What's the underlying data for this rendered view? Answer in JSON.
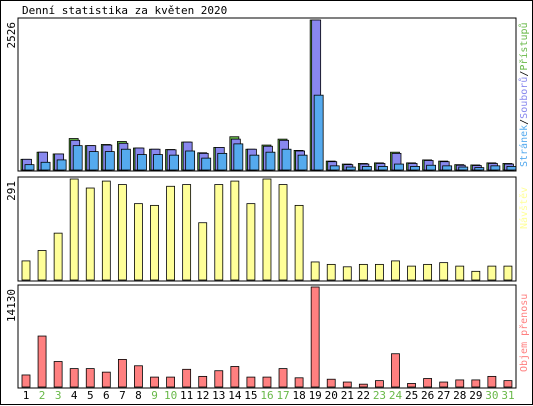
{
  "title": "Denní statistika za květen 2020",
  "colors": {
    "hits": "#68b848",
    "files": "#8888ee",
    "pages": "#55aaee",
    "visits": "#ffff99",
    "kbytes": "#ff8080",
    "weekend_day_label": "#68b848",
    "day_label": "#000000"
  },
  "chart_data": [
    {
      "type": "bar",
      "name": "hits-files-pages",
      "categories": [
        "1",
        "2",
        "3",
        "4",
        "5",
        "6",
        "7",
        "8",
        "9",
        "10",
        "11",
        "12",
        "13",
        "14",
        "15",
        "16",
        "17",
        "18",
        "19",
        "20",
        "21",
        "22",
        "23",
        "24",
        "25",
        "26",
        "27",
        "28",
        "29",
        "30",
        "31"
      ],
      "ymax_label": "2526",
      "ylim": [
        0,
        2526
      ],
      "legend": {
        "pages": "Stránek",
        "files": "Souborů",
        "hits": "Přístupů",
        "separator": "/"
      },
      "series": [
        {
          "name": "Přístupů",
          "values": [
            180,
            300,
            270,
            530,
            410,
            430,
            480,
            370,
            350,
            345,
            470,
            290,
            380,
            560,
            350,
            420,
            520,
            330,
            2526,
            150,
            100,
            110,
            120,
            300,
            120,
            170,
            150,
            90,
            85,
            120,
            110
          ]
        },
        {
          "name": "Souborů",
          "values": [
            180,
            300,
            270,
            500,
            410,
            420,
            450,
            370,
            350,
            340,
            470,
            280,
            380,
            520,
            350,
            400,
            500,
            320,
            2526,
            140,
            90,
            100,
            110,
            280,
            110,
            160,
            140,
            80,
            75,
            110,
            100
          ]
        },
        {
          "name": "Stránek",
          "values": [
            90,
            130,
            170,
            410,
            310,
            310,
            350,
            260,
            260,
            250,
            320,
            200,
            280,
            440,
            250,
            300,
            350,
            250,
            1260,
            70,
            50,
            60,
            60,
            100,
            60,
            80,
            70,
            50,
            40,
            70,
            60
          ]
        }
      ]
    },
    {
      "type": "bar",
      "name": "visits",
      "categories": [
        "1",
        "2",
        "3",
        "4",
        "5",
        "6",
        "7",
        "8",
        "9",
        "10",
        "11",
        "12",
        "13",
        "14",
        "15",
        "16",
        "17",
        "18",
        "19",
        "20",
        "21",
        "22",
        "23",
        "24",
        "25",
        "26",
        "27",
        "28",
        "29",
        "30",
        "31"
      ],
      "ymax_label": "291",
      "ylim": [
        0,
        291
      ],
      "legend": {
        "visits": "Návštěv"
      },
      "series": [
        {
          "name": "Návštěv",
          "values": [
            55,
            85,
            135,
            291,
            265,
            285,
            275,
            220,
            215,
            270,
            275,
            165,
            275,
            285,
            220,
            291,
            275,
            215,
            52,
            45,
            38,
            45,
            45,
            55,
            40,
            45,
            50,
            40,
            25,
            40,
            40
          ]
        }
      ]
    },
    {
      "type": "bar",
      "name": "kbytes",
      "categories": [
        "1",
        "2",
        "3",
        "4",
        "5",
        "6",
        "7",
        "8",
        "9",
        "10",
        "11",
        "12",
        "13",
        "14",
        "15",
        "16",
        "17",
        "18",
        "19",
        "20",
        "21",
        "22",
        "23",
        "24",
        "25",
        "26",
        "27",
        "28",
        "29",
        "30",
        "31"
      ],
      "ymax_label": "14130",
      "ylim": [
        0,
        14130
      ],
      "legend": {
        "kbytes": "Objem přenosu"
      },
      "series": [
        {
          "name": "Objem přenosu",
          "values": [
            1700,
            7200,
            3600,
            2600,
            2600,
            2100,
            3900,
            3000,
            1400,
            1400,
            2500,
            1500,
            2300,
            2900,
            1400,
            1400,
            2600,
            1300,
            14130,
            1100,
            700,
            400,
            900,
            4700,
            500,
            1200,
            700,
            1000,
            1000,
            1500,
            900
          ]
        }
      ]
    }
  ],
  "day_label_highlight": [
    false,
    true,
    true,
    false,
    false,
    false,
    false,
    false,
    true,
    true,
    false,
    false,
    false,
    false,
    false,
    true,
    true,
    false,
    false,
    false,
    false,
    false,
    true,
    true,
    false,
    false,
    false,
    false,
    false,
    true,
    true
  ]
}
